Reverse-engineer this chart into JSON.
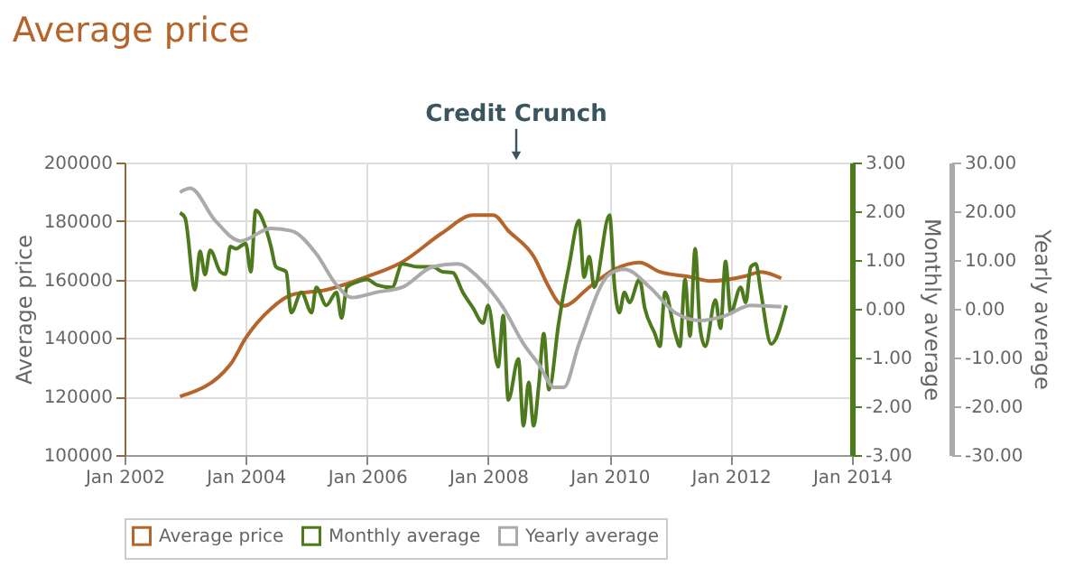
{
  "chart_data": {
    "type": "line",
    "title": "Average price",
    "ylabel": "Average price",
    "y2label": "Monthly average",
    "y3label": "Yearly average",
    "annotations": [
      "Credit Crunch"
    ],
    "xlim": [
      "2002-01",
      "2014-01"
    ],
    "xticks": [
      {
        "value": "2002-01",
        "label": "Jan 2002"
      },
      {
        "value": "2004-01",
        "label": "Jan 2004"
      },
      {
        "value": "2006-01",
        "label": "Jan 2006"
      },
      {
        "value": "2008-01",
        "label": "Jan 2008"
      },
      {
        "value": "2010-01",
        "label": "Jan 2010"
      },
      {
        "value": "2012-01",
        "label": "Jan 2012"
      },
      {
        "value": "2014-01",
        "label": "Jan 2014"
      }
    ],
    "ylim": [
      100000,
      200000
    ],
    "yticks": [
      100000,
      120000,
      140000,
      160000,
      180000,
      200000
    ],
    "y2lim": [
      -3,
      3
    ],
    "y2ticks": [
      {
        "value": -3,
        "label": "-3.00"
      },
      {
        "value": -2,
        "label": "-2.00"
      },
      {
        "value": -1,
        "label": "-1.00"
      },
      {
        "value": 0,
        "label": "0.00"
      },
      {
        "value": 1,
        "label": "1.00"
      },
      {
        "value": 2,
        "label": "2.00"
      },
      {
        "value": 3,
        "label": "3.00"
      }
    ],
    "y3lim": [
      -30,
      30
    ],
    "y3ticks": [
      {
        "value": -30,
        "label": "-30.00"
      },
      {
        "value": -20,
        "label": "-20.00"
      },
      {
        "value": -10,
        "label": "-10.00"
      },
      {
        "value": 0,
        "label": "0.00"
      },
      {
        "value": 10,
        "label": "10.00"
      },
      {
        "value": 20,
        "label": "20.00"
      },
      {
        "value": 30,
        "label": "30.00"
      }
    ],
    "grid": true,
    "legend": "bottom",
    "marker": "none",
    "line_style": "solid",
    "series": [
      {
        "name": "Average price",
        "color": "#b5652a",
        "axis": "y",
        "x": [
          "2002-12",
          "2003-10",
          "2004-01",
          "2004-06",
          "2004-10",
          "2005-05",
          "2006-01",
          "2006-08",
          "2007-04",
          "2007-10",
          "2008-02",
          "2008-05",
          "2008-10",
          "2009-01",
          "2009-03",
          "2009-04",
          "2009-09",
          "2010-02",
          "2010-07",
          "2010-11",
          "2011-05",
          "2011-09",
          "2012-04",
          "2012-07",
          "2012-11"
        ],
        "values": [
          120000,
          131000,
          140000,
          150000,
          154700,
          156500,
          161000,
          166000,
          176000,
          182000,
          182000,
          176700,
          167900,
          157400,
          152000,
          151000,
          157400,
          163500,
          165800,
          162600,
          160900,
          159500,
          161200,
          162600,
          160400
        ]
      },
      {
        "name": "Monthly average",
        "color": "#4e7a1e",
        "axis": "y2",
        "x": [
          "2002-12",
          "2003-01",
          "2003-03",
          "2003-04",
          "2003-05",
          "2003-06",
          "2003-08",
          "2003-09",
          "2003-10",
          "2003-11",
          "2004-01",
          "2004-02",
          "2004-03",
          "2004-05",
          "2004-06",
          "2004-07",
          "2004-09",
          "2004-10",
          "2004-12",
          "2005-02",
          "2005-03",
          "2005-05",
          "2005-07",
          "2005-08",
          "2005-09",
          "2005-11",
          "2006-01",
          "2006-03",
          "2006-06",
          "2006-08",
          "2006-11",
          "2007-02",
          "2007-04",
          "2007-06",
          "2007-08",
          "2007-10",
          "2007-12",
          "2008-01",
          "2008-03",
          "2008-04",
          "2008-05",
          "2008-07",
          "2008-08",
          "2008-09",
          "2008-10",
          "2008-11",
          "2008-12",
          "2009-01",
          "2009-03",
          "2009-04",
          "2009-05",
          "2009-07",
          "2009-08",
          "2009-09",
          "2009-10",
          "2010-01",
          "2010-02",
          "2010-03",
          "2010-04",
          "2010-05",
          "2010-07",
          "2010-08",
          "2010-10",
          "2010-11",
          "2010-12",
          "2011-02",
          "2011-03",
          "2011-04",
          "2011-05",
          "2011-06",
          "2011-07",
          "2011-08",
          "2011-10",
          "2011-11",
          "2011-12",
          "2012-01",
          "2012-03",
          "2012-04",
          "2012-05",
          "2012-06",
          "2012-07",
          "2012-09",
          "2012-12"
        ],
        "values": [
          1.97,
          1.86,
          0.39,
          1.18,
          0.7,
          1.2,
          0.76,
          0.71,
          1.28,
          1.23,
          1.34,
          0.76,
          2.02,
          1.65,
          1.28,
          0.86,
          0.76,
          -0.08,
          0.34,
          -0.08,
          0.44,
          0.07,
          0.34,
          -0.19,
          0.44,
          0.55,
          0.6,
          0.49,
          0.44,
          0.92,
          0.86,
          0.86,
          0.76,
          0.74,
          0.34,
          0.02,
          -0.29,
          0.07,
          -1.19,
          -0.14,
          -1.87,
          -1.03,
          -2.4,
          -1.51,
          -2.4,
          -1.56,
          -0.51,
          -1.66,
          -0.29,
          0.34,
          0.86,
          1.81,
          0.65,
          1.07,
          0.44,
          1.92,
          0.44,
          -0.08,
          0.34,
          0.13,
          0.6,
          0.02,
          -0.51,
          -0.77,
          0.34,
          -0.51,
          -0.77,
          0.6,
          -0.56,
          1.23,
          -0.4,
          -0.77,
          0.18,
          -0.4,
          0.97,
          -0.08,
          0.44,
          0.13,
          0.86,
          0.92,
          0.34,
          -0.72,
          0.07
        ]
      },
      {
        "name": "Yearly average",
        "color": "#aaaaaa",
        "axis": "y3",
        "x": [
          "2002-12",
          "2003-02",
          "2003-07",
          "2003-12",
          "2004-06",
          "2004-10",
          "2005-03",
          "2005-07",
          "2005-10",
          "2006-03",
          "2006-08",
          "2007-02",
          "2007-07",
          "2007-11",
          "2008-04",
          "2008-08",
          "2008-11",
          "2009-02",
          "2009-04",
          "2009-07",
          "2010-01",
          "2010-04",
          "2010-09",
          "2011-02",
          "2011-07",
          "2011-12",
          "2012-05",
          "2012-11"
        ],
        "values": [
          23.9,
          24.7,
          18.1,
          13.9,
          16.5,
          16,
          11.3,
          4.9,
          2.3,
          3.4,
          4.4,
          8.6,
          9.2,
          6.5,
          0.2,
          -7.2,
          -11.4,
          -16.1,
          -16.1,
          -7.2,
          7.1,
          8.1,
          4.4,
          -0.8,
          -2.4,
          -1.4,
          0.7,
          0.4
        ]
      }
    ]
  }
}
